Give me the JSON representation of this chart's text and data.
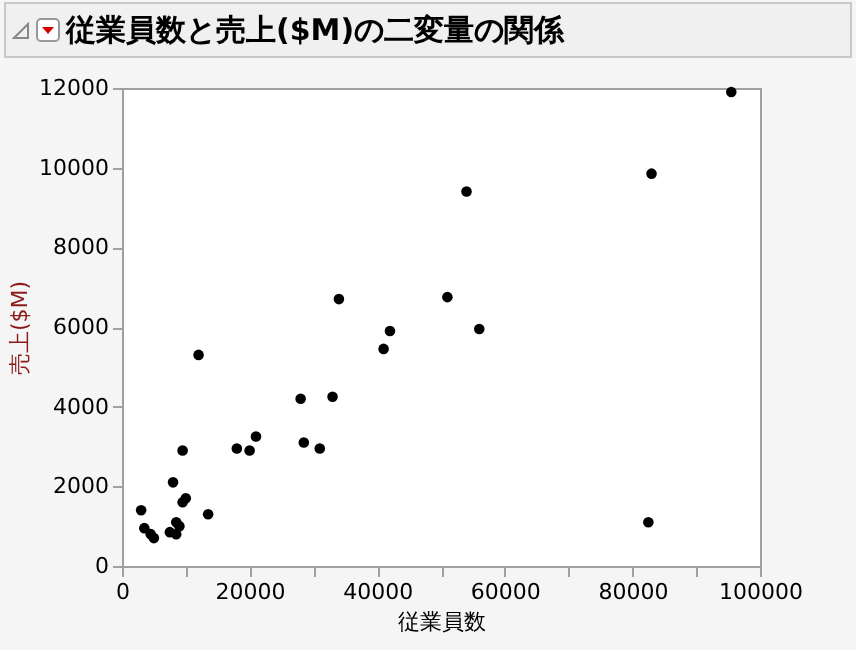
{
  "chart_data": {
    "type": "scatter",
    "title": "従業員数と売上($M)の二変量の関係",
    "xlabel": "従業員数",
    "ylabel": "売上($M)",
    "marker": "circle",
    "grid": false,
    "legend": false,
    "xlim": [
      0,
      100000
    ],
    "ylim": [
      0,
      12000
    ],
    "xticks": [
      0,
      {
        "value": 10000,
        "label": null
      },
      20000,
      {
        "value": 30000,
        "label": null
      },
      40000,
      {
        "value": 50000,
        "label": null
      },
      60000,
      {
        "value": 70000,
        "label": null
      },
      80000,
      {
        "value": 90000,
        "label": null
      },
      100000
    ],
    "yticks": [
      0,
      2000,
      4000,
      6000,
      8000,
      10000,
      12000
    ],
    "series": [
      {
        "color": "#000000",
        "x": [
          3000,
          3500,
          4500,
          5000,
          7500,
          8000,
          8500,
          8500,
          9000,
          9500,
          9500,
          10000,
          12000,
          13500,
          18000,
          20000,
          21000,
          28000,
          28500,
          31000,
          33000,
          34000,
          41000,
          42000,
          51000,
          54000,
          56000,
          83000,
          82500,
          95500
        ],
        "values": [
          1400,
          950,
          800,
          700,
          850,
          2100,
          1100,
          800,
          1000,
          2900,
          1600,
          1700,
          5300,
          1300,
          2950,
          2900,
          3250,
          4200,
          3100,
          2950,
          4250,
          6700,
          5450,
          5900,
          6750,
          9400,
          5950,
          9850,
          1100,
          11900
        ]
      }
    ]
  }
}
